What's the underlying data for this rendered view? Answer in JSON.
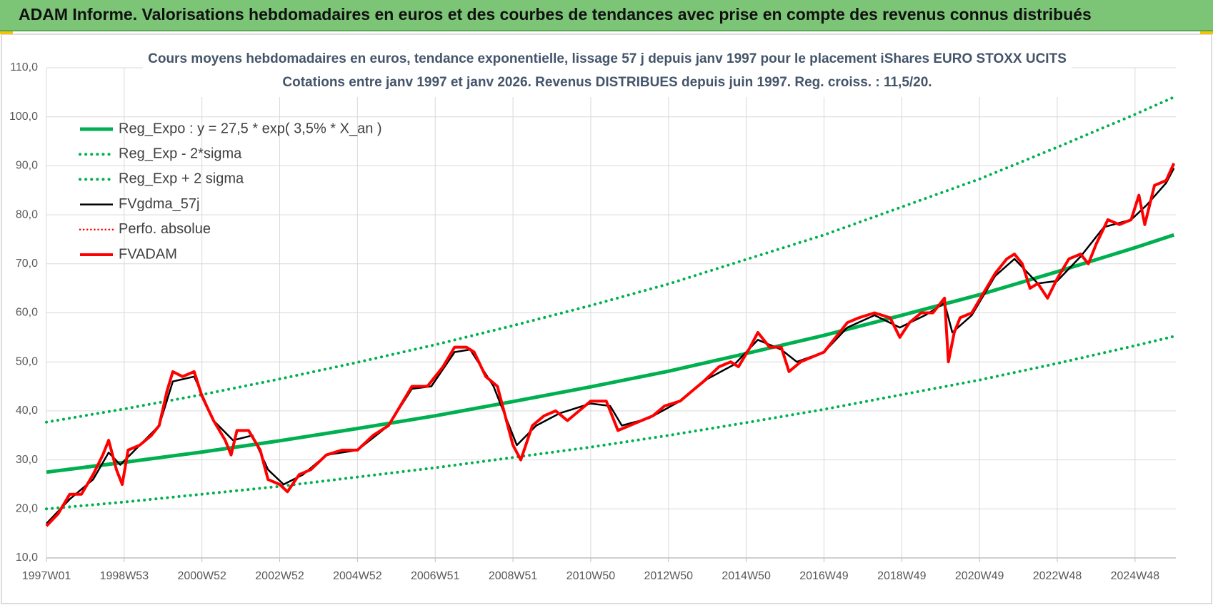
{
  "header": {
    "title": "ADAM Informe. Valorisations hebdomadaires en euros et des courbes de tendances avec prise en compte des revenus connus distribués"
  },
  "chart_data": {
    "type": "line",
    "title": "Cours moyens hebdomadaires en euros, tendance exponentielle, lissage 57 j depuis janv 1997  pour le placement iShares EURO STOXX UCITS",
    "subtitle": "Cotations entre janv 1997 et janv 2026. Revenus DISTRIBUES depuis juin 1997. Reg. croiss. : 11,5/20.",
    "xlim": [
      1997,
      2026.05
    ],
    "ylim": [
      10,
      110
    ],
    "xticks": [
      {
        "value": 1997,
        "label": "1997W01"
      },
      {
        "value": 1999,
        "label": "1998W53"
      },
      {
        "value": 2001,
        "label": "2000W52"
      },
      {
        "value": 2003,
        "label": "2002W52"
      },
      {
        "value": 2005,
        "label": "2004W52"
      },
      {
        "value": 2007,
        "label": "2006W51"
      },
      {
        "value": 2009,
        "label": "2008W51"
      },
      {
        "value": 2011,
        "label": "2010W50"
      },
      {
        "value": 2013,
        "label": "2012W50"
      },
      {
        "value": 2015,
        "label": "2014W50"
      },
      {
        "value": 2017,
        "label": "2016W49"
      },
      {
        "value": 2019,
        "label": "2018W49"
      },
      {
        "value": 2021,
        "label": "2020W49"
      },
      {
        "value": 2023,
        "label": "2022W48"
      },
      {
        "value": 2025,
        "label": "2024W48"
      }
    ],
    "yticks": [
      {
        "value": 10,
        "label": "10,0"
      },
      {
        "value": 20,
        "label": "20,0"
      },
      {
        "value": 30,
        "label": "30,0"
      },
      {
        "value": 40,
        "label": "40,0"
      },
      {
        "value": 50,
        "label": "50,0"
      },
      {
        "value": 60,
        "label": "60,0"
      },
      {
        "value": 70,
        "label": "70,0"
      },
      {
        "value": 80,
        "label": "80,0"
      },
      {
        "value": 90,
        "label": "90,0"
      },
      {
        "value": 100,
        "label": "100,0"
      },
      {
        "value": 110,
        "label": "110,0"
      }
    ],
    "grid": true,
    "legend": "upper left",
    "series": [
      {
        "name": "Reg_Expo : y = 27,5 * exp( 3,5% *  X_an )",
        "color": "#00b050",
        "style": "solid",
        "width": 5,
        "x": [
          1997,
          1999,
          2001,
          2003,
          2005,
          2007,
          2009,
          2011,
          2013,
          2015,
          2017,
          2019,
          2021,
          2023,
          2025,
          2026
        ],
        "values": [
          27.5,
          29.5,
          31.6,
          33.9,
          36.4,
          39.0,
          41.9,
          44.9,
          48.1,
          51.7,
          55.4,
          59.5,
          63.7,
          68.4,
          73.3,
          75.9
        ]
      },
      {
        "name": "Reg_Exp - 2*sigma",
        "color": "#00b050",
        "style": "dotted",
        "width": 4,
        "x": [
          1997,
          1999,
          2001,
          2003,
          2005,
          2007,
          2009,
          2011,
          2013,
          2015,
          2017,
          2019,
          2021,
          2023,
          2025,
          2026
        ],
        "values": [
          20.0,
          21.4,
          23.0,
          24.6,
          26.5,
          28.4,
          30.5,
          32.6,
          35.0,
          37.6,
          40.3,
          43.3,
          46.3,
          49.7,
          53.3,
          55.2
        ]
      },
      {
        "name": "Reg_Exp + 2 sigma",
        "color": "#00b050",
        "style": "dotted",
        "width": 4,
        "x": [
          1997,
          1999,
          2001,
          2003,
          2005,
          2007,
          2009,
          2011,
          2013,
          2015,
          2017,
          2019,
          2021,
          2023,
          2025,
          2026
        ],
        "values": [
          37.7,
          40.4,
          43.3,
          46.5,
          49.9,
          53.5,
          57.4,
          61.5,
          65.9,
          70.9,
          75.9,
          81.6,
          87.3,
          93.8,
          100.5,
          104.0
        ]
      },
      {
        "name": "FVgdma_57j",
        "color": "#000000",
        "style": "solid",
        "width": 2.5,
        "x": [
          1997.0,
          1997.6,
          1998.2,
          1998.6,
          1998.9,
          1999.4,
          1999.9,
          2000.25,
          2000.8,
          2001.3,
          2001.8,
          2002.3,
          2002.7,
          2003.1,
          2003.6,
          2004.2,
          2005.0,
          2005.8,
          2006.4,
          2006.9,
          2007.5,
          2007.9,
          2008.5,
          2009.1,
          2009.6,
          2010.2,
          2011.0,
          2011.5,
          2011.8,
          2012.5,
          2013.3,
          2014.0,
          2014.7,
          2015.3,
          2015.9,
          2016.3,
          2017.0,
          2017.6,
          2018.3,
          2018.95,
          2019.6,
          2020.1,
          2020.3,
          2020.8,
          2021.4,
          2021.9,
          2022.5,
          2023.0,
          2023.6,
          2024.2,
          2024.9,
          2025.3,
          2025.8,
          2026.0
        ],
        "values": [
          17,
          22,
          26,
          31.5,
          29,
          33,
          37,
          46,
          47,
          38,
          34,
          35,
          28,
          25,
          27,
          31,
          32,
          37,
          44.5,
          45,
          52,
          52.5,
          45,
          33,
          37,
          39.5,
          41.5,
          41,
          37,
          38.5,
          42,
          46.5,
          49.5,
          54.5,
          52.5,
          50,
          52,
          57,
          59.5,
          57,
          59.5,
          62,
          56,
          59.5,
          67.5,
          71,
          66,
          66.5,
          71.5,
          77.5,
          79,
          82,
          86.5,
          89.5
        ]
      },
      {
        "name": "Perfo. absolue",
        "color": "#ff0000",
        "style": "dotted",
        "width": 2.5
      },
      {
        "name": "FVADAM",
        "color": "#ff0000",
        "style": "solid",
        "width": 4,
        "x": [
          1997.0,
          1997.3,
          1997.6,
          1997.9,
          1998.2,
          1998.45,
          1998.6,
          1998.8,
          1998.95,
          1999.1,
          1999.4,
          1999.7,
          1999.9,
          2000.1,
          2000.25,
          2000.5,
          2000.8,
          2001.0,
          2001.3,
          2001.6,
          2001.75,
          2001.9,
          2002.2,
          2002.5,
          2002.7,
          2003.0,
          2003.2,
          2003.5,
          2003.8,
          2004.2,
          2004.6,
          2005.0,
          2005.4,
          2005.8,
          2006.1,
          2006.4,
          2006.8,
          2007.2,
          2007.5,
          2007.8,
          2008.0,
          2008.3,
          2008.6,
          2008.9,
          2009.0,
          2009.2,
          2009.5,
          2009.8,
          2010.1,
          2010.4,
          2010.7,
          2011.0,
          2011.4,
          2011.7,
          2012.0,
          2012.3,
          2012.6,
          2012.9,
          2013.3,
          2013.6,
          2013.9,
          2014.3,
          2014.6,
          2014.8,
          2015.1,
          2015.3,
          2015.6,
          2015.9,
          2016.1,
          2016.4,
          2016.7,
          2017.0,
          2017.3,
          2017.6,
          2017.9,
          2018.3,
          2018.7,
          2018.95,
          2019.2,
          2019.5,
          2019.8,
          2020.1,
          2020.2,
          2020.35,
          2020.5,
          2020.8,
          2021.1,
          2021.4,
          2021.7,
          2021.9,
          2022.1,
          2022.3,
          2022.5,
          2022.75,
          2023.0,
          2023.3,
          2023.6,
          2023.8,
          2024.0,
          2024.3,
          2024.6,
          2024.9,
          2025.1,
          2025.25,
          2025.5,
          2025.8,
          2026.0
        ],
        "values": [
          16.5,
          19,
          23,
          23,
          27,
          31,
          34,
          28,
          25,
          32,
          33,
          35,
          37,
          44,
          48,
          47,
          48,
          43,
          38,
          34,
          31,
          36,
          36,
          32,
          26,
          25,
          23.5,
          27,
          28,
          31,
          32,
          32,
          35,
          37,
          41,
          45,
          45,
          49,
          53,
          53,
          52,
          47,
          45,
          36,
          33,
          30,
          37,
          39,
          40,
          38,
          40,
          42,
          42,
          36,
          37,
          38,
          39,
          41,
          42,
          44,
          46,
          49,
          50,
          49,
          53,
          56,
          53,
          53,
          48,
          50,
          51,
          52,
          55,
          58,
          59,
          60,
          59,
          55,
          58,
          60,
          60,
          63,
          50,
          56,
          59,
          60,
          64,
          68,
          71,
          72,
          70,
          65,
          66,
          63,
          67,
          71,
          72,
          70,
          74,
          79,
          78,
          79,
          84,
          78,
          86,
          87,
          90.5
        ]
      }
    ]
  }
}
